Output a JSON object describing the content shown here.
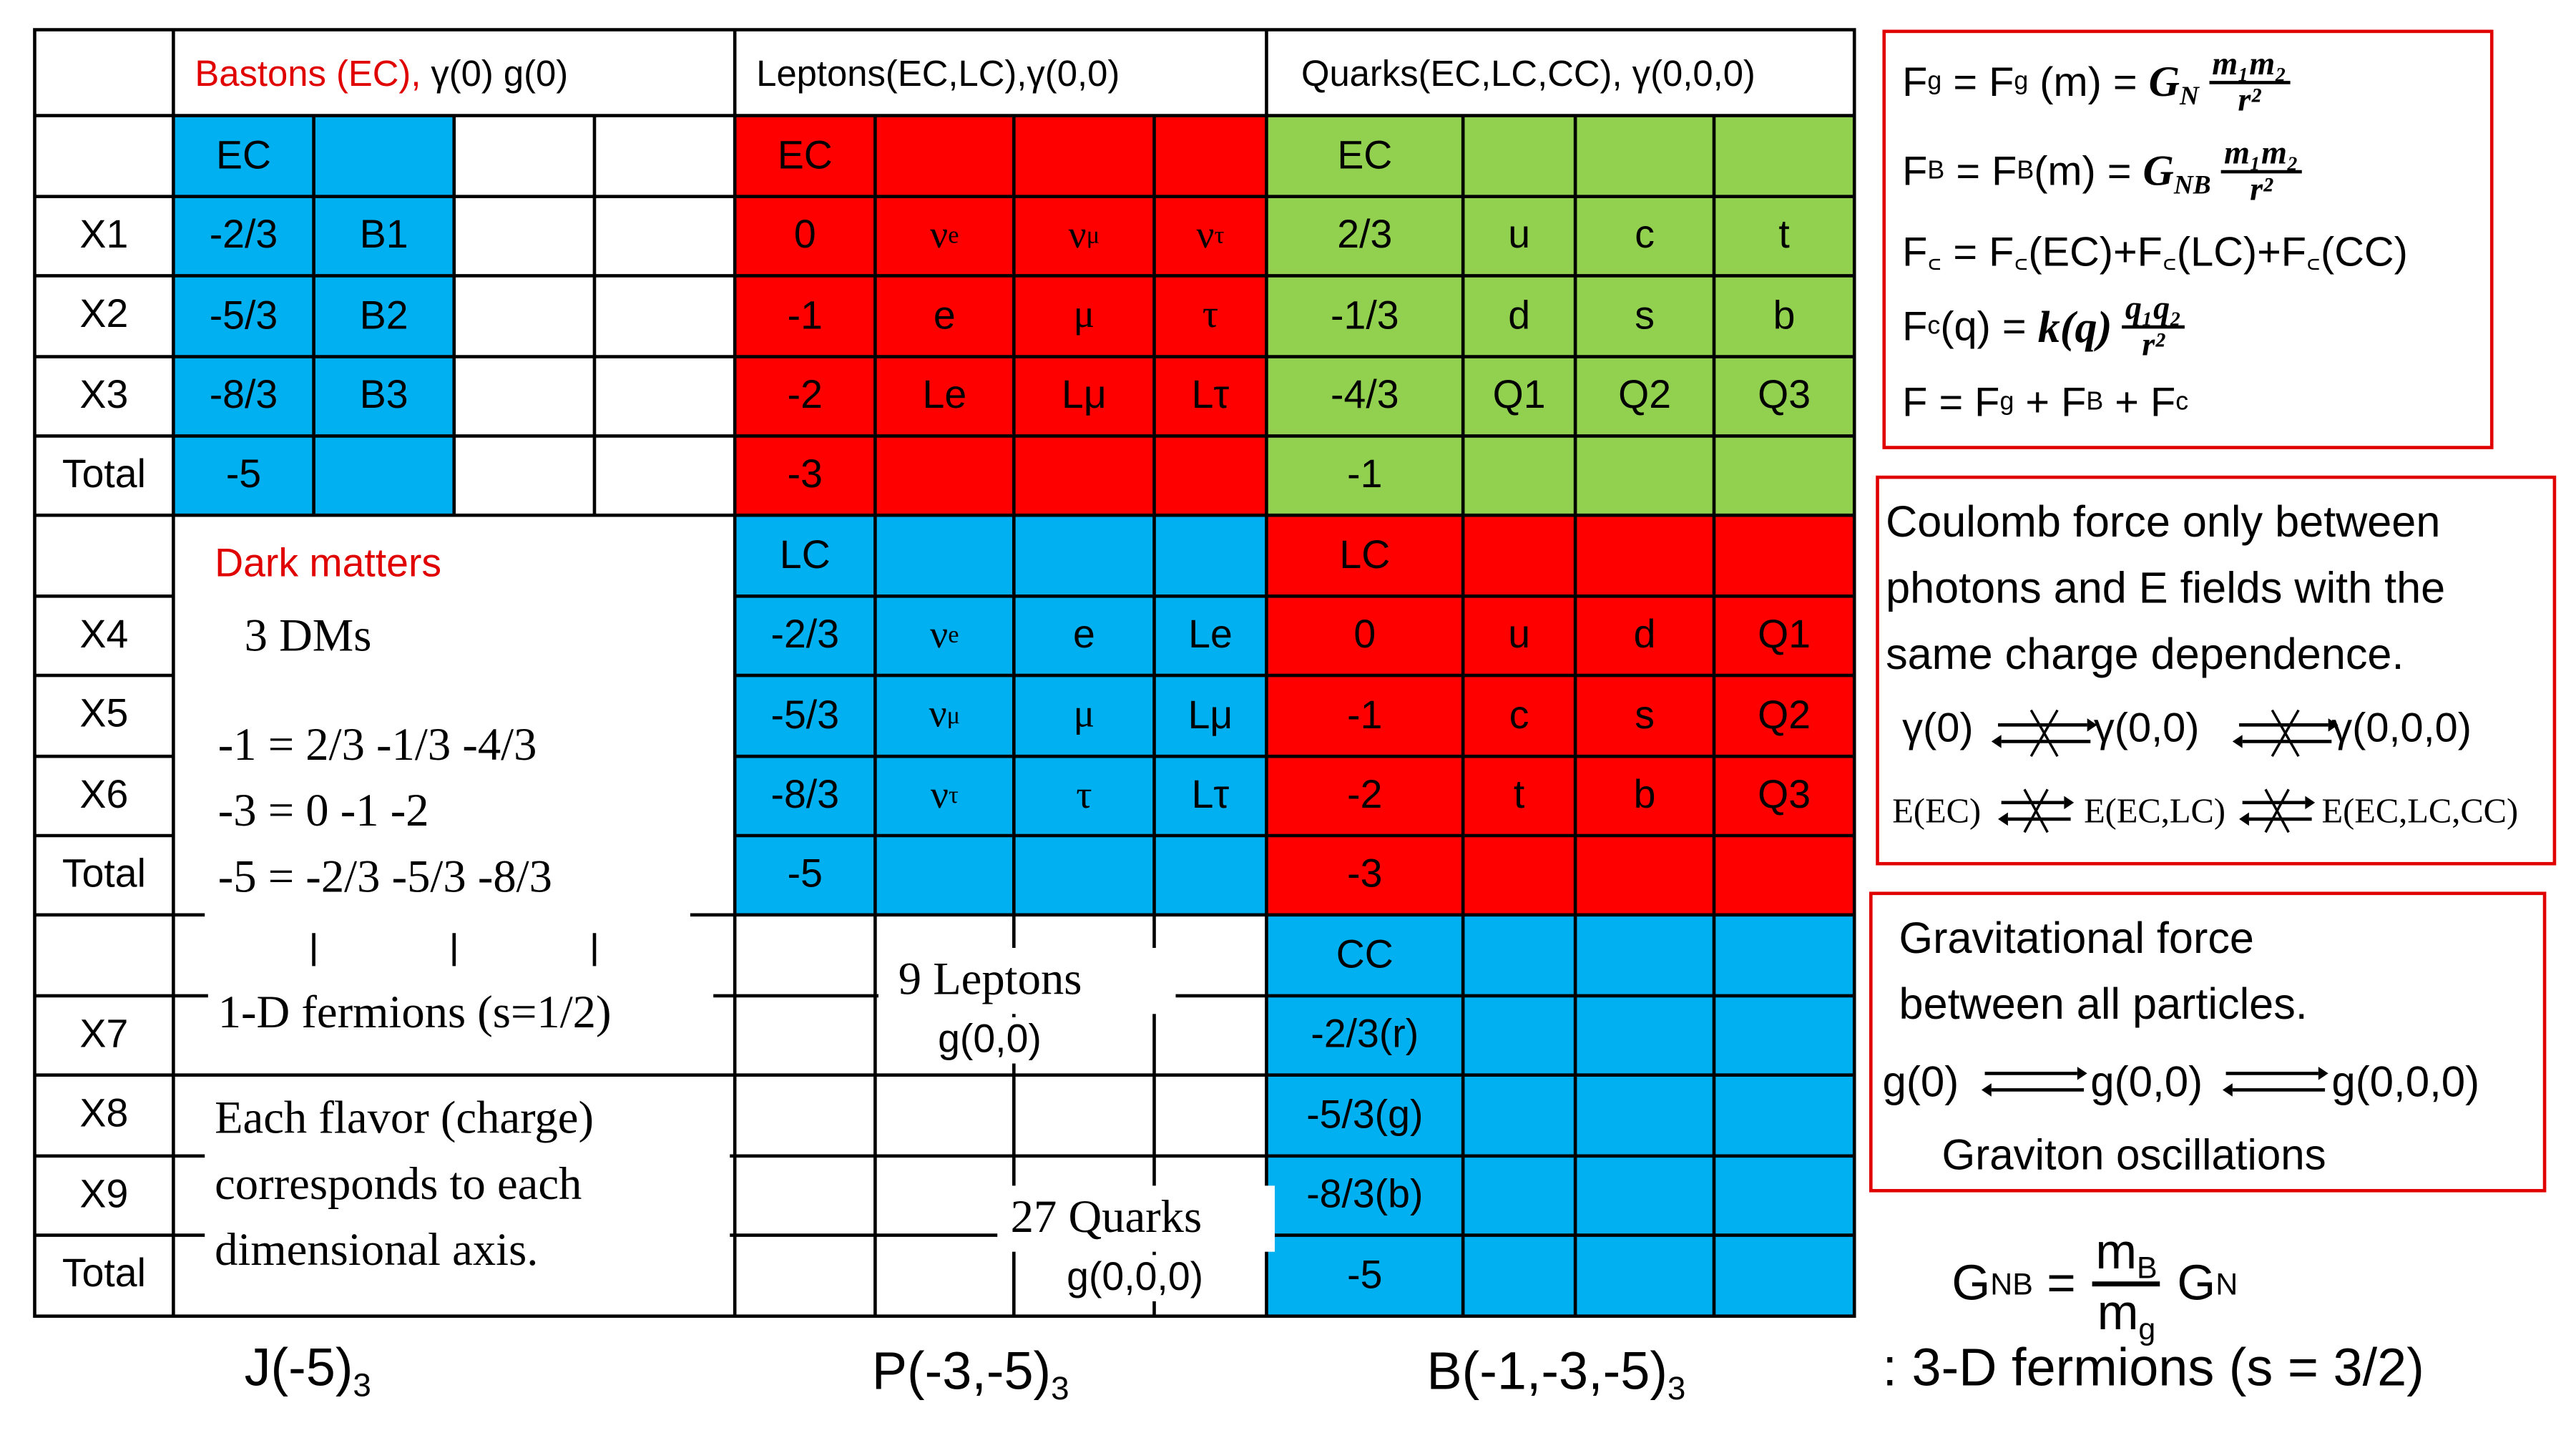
{
  "colors": {
    "blue": "#00b0f0",
    "red": "#ff0000",
    "green": "#92d050",
    "label_red": "#e00000"
  },
  "headers": {
    "bastons": {
      "label": "Bastons (EC),",
      "symbols": "γ(0)  g(0)"
    },
    "leptons": "Leptons(EC,LC),γ(0,0)",
    "quarks": "Quarks(EC,LC,CC), γ(0,0,0)"
  },
  "row_labels": [
    "X1",
    "X2",
    "X3",
    "Total",
    "X4",
    "X5",
    "X6",
    "Total",
    "X7",
    "X8",
    "X9",
    "Total"
  ],
  "bastons": {
    "ec": "EC",
    "charges": [
      "-2/3",
      "-5/3",
      "-8/3"
    ],
    "names": [
      "B1",
      "B2",
      "B3"
    ],
    "total": "-5"
  },
  "leptons_ec": {
    "ec": "EC",
    "rows": [
      [
        "0",
        "ν",
        "e",
        "ν",
        "μ",
        "ν",
        "τ"
      ],
      [
        "-1",
        "e",
        "μ",
        "τ"
      ],
      [
        "-2",
        "Le",
        "Lμ",
        "Lτ"
      ]
    ],
    "total": "-3"
  },
  "leptons_lc": {
    "lc": "LC",
    "total": "-5"
  },
  "quarks_ec": {
    "ec": "EC",
    "rows": [
      [
        "2/3",
        "u",
        "c",
        "t"
      ],
      [
        "-1/3",
        "d",
        "s",
        "b"
      ],
      [
        "-4/3",
        "Q1",
        "Q2",
        "Q3"
      ]
    ],
    "total": "-1"
  },
  "quarks_lc": {
    "lc": "LC",
    "rows": [
      [
        "0",
        "u",
        "d",
        "Q1"
      ],
      [
        "-1",
        "c",
        "s",
        "Q2"
      ],
      [
        "-2",
        "t",
        "b",
        "Q3"
      ]
    ],
    "total": "-3"
  },
  "quarks_cc": {
    "cc": "CC",
    "rows": [
      "-2/3(r)",
      "-5/3(g)",
      "-8/3(b)"
    ],
    "total": "-5"
  },
  "lepton_lc_rows": {
    "charges": [
      "-2/3",
      "-5/3",
      "-8/3"
    ],
    "nu": [
      "ν",
      "ν",
      "ν"
    ],
    "nu_sub": [
      "e",
      "μ",
      "τ"
    ],
    "mid": [
      "e",
      "μ",
      "τ"
    ],
    "last": [
      "Le",
      "Lμ",
      "Lτ"
    ]
  },
  "notes": {
    "dark_matters": "Dark matters",
    "three_dms": "3 DMs",
    "eq1": "-1 =  2/3 -1/3 -4/3",
    "eq2": "-3 = 0 -1 -2",
    "eq3": "-5 = -2/3 -5/3 -8/3",
    "fermions_1d": "1-D fermions (s=1/2)",
    "flavor1": "Each flavor (charge)",
    "flavor2": "corresponds to each",
    "flavor3": "dimensional axis.",
    "nine_leptons": "9 Leptons",
    "nine_leptons_g": "g(0,0)",
    "quarks27": "27 Quarks",
    "quarks27_g": "g(0,0,0)"
  },
  "bottom": {
    "j": "J(-5)",
    "j_sub": "3",
    "p": "P(-3,-5)",
    "p_sub": "3",
    "b": "B(-1,-3,-5)",
    "b_sub": "3",
    "fermions3d": ": 3-D fermions (s = 3/2)"
  },
  "formulas": {
    "fg": {
      "lhs": "F",
      "sub": "g",
      "mid": " = F",
      "mid_sub": "g",
      "rest": " (m) = ",
      "g": "G",
      "g_sub": "N",
      "num": "m₁m₂",
      "den": "r²"
    },
    "fb": {
      "lhs": "F",
      "sub": "B",
      "mid": " = F",
      "mid_sub": "B",
      "rest": "(m) = ",
      "g": "G",
      "g_sub": "NB",
      "num": "m₁m₂",
      "den": "r²"
    },
    "fc": "F꜀  =  F꜀(EC)+F꜀(LC)+F꜀(CC)",
    "fcq": {
      "lhs": "F",
      "sub": "c",
      "rest": "(q) = ",
      "k": "k(q)",
      "num": "q₁q₂",
      "den": "r²"
    },
    "f": "F = F",
    "f_parts": [
      "g",
      " + F",
      "B",
      " + F",
      "c"
    ]
  },
  "coulomb": {
    "line1": "Coulomb force only between",
    "line2": "photons and E fields with the",
    "line3": "same charge dependence.",
    "g0": "γ(0)",
    "g00": "γ(0,0)",
    "g000": "γ(0,0,0)",
    "e1": "E(EC)",
    "e2": "E(EC,LC)",
    "e3": "E(EC,LC,CC)"
  },
  "gravity": {
    "line1": "Gravitational force",
    "line2": "between all particles.",
    "g0": "g(0)",
    "g00": "g(0,0)",
    "g000": "g(0,0,0)",
    "osc": "Graviton oscillations"
  },
  "gnb": {
    "lhs": "G",
    "lhs_sub": "NB",
    "eq": " =",
    "num": "m",
    "num_sub": "B",
    "den": "m",
    "den_sub": "g",
    "rhs": "G",
    "rhs_sub": "N"
  }
}
